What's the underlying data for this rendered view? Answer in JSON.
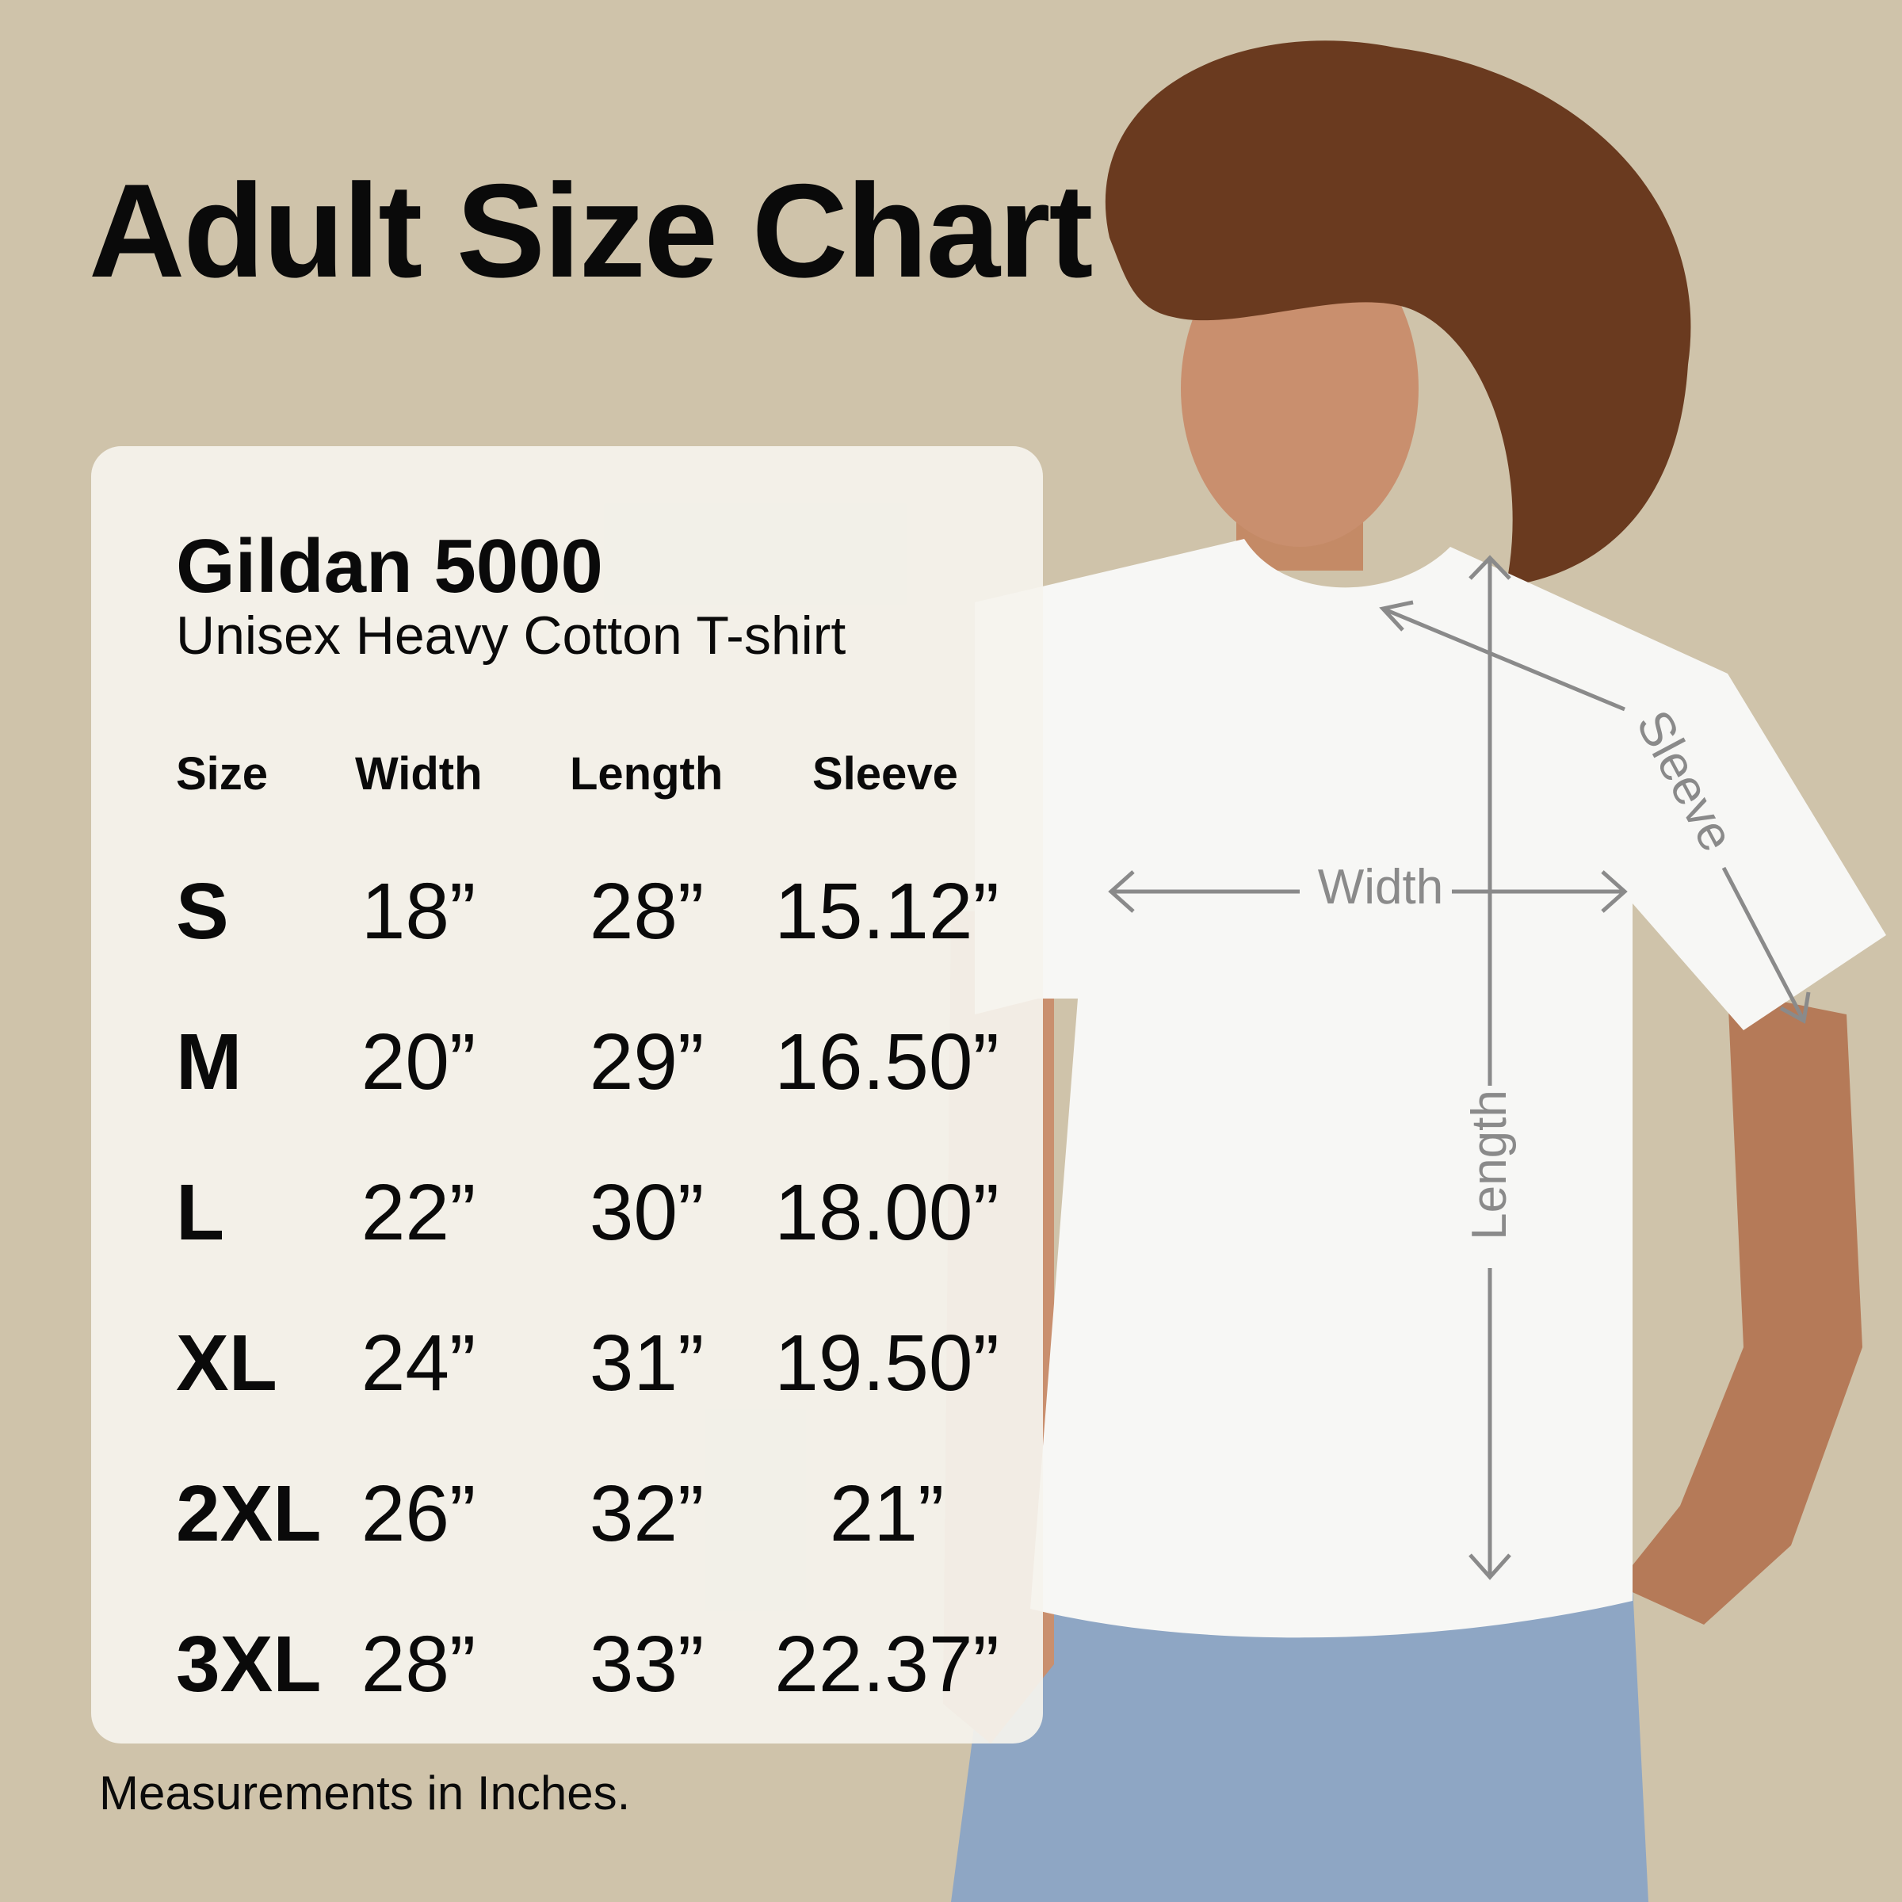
{
  "title": "Adult Size Chart",
  "card": {
    "brand": "Gildan 5000",
    "subtitle": "Unisex Heavy Cotton T-shirt",
    "headers": [
      "Size",
      "Width",
      "Length",
      "Sleeve"
    ],
    "rows": [
      {
        "size": "S",
        "width": "18”",
        "length": "28”",
        "sleeve": "15.12”"
      },
      {
        "size": "M",
        "width": "20”",
        "length": "29”",
        "sleeve": "16.50”"
      },
      {
        "size": "L",
        "width": "22”",
        "length": "30”",
        "sleeve": "18.00”"
      },
      {
        "size": "XL",
        "width": "24”",
        "length": "31”",
        "sleeve": "19.50”"
      },
      {
        "size": "2XL",
        "width": "26”",
        "length": "32”",
        "sleeve": "21”"
      },
      {
        "size": "3XL",
        "width": "28”",
        "length": "33”",
        "sleeve": "22.37”"
      }
    ]
  },
  "footer": "Measurements in Inches.",
  "diagram": {
    "width_label": "Width",
    "length_label": "Length",
    "sleeve_label": "Sleeve"
  },
  "colors": {
    "background": "#cfc3aa",
    "card": "#f5f3ed",
    "arrows": "#8a8a8a",
    "shirt": "#f7f7f5"
  }
}
